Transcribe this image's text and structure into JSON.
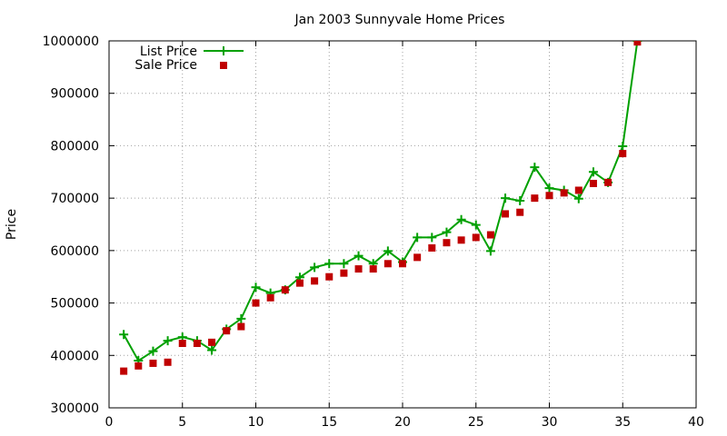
{
  "chart_data": {
    "type": "line",
    "title": "Jan 2003 Sunnyvale Home Prices",
    "xlabel": "",
    "ylabel": "Price",
    "xlim": [
      0,
      40
    ],
    "ylim": [
      300000,
      1000000
    ],
    "xticks": [
      0,
      5,
      10,
      15,
      20,
      25,
      30,
      35,
      40
    ],
    "yticks": [
      300000,
      400000,
      500000,
      600000,
      700000,
      800000,
      900000,
      1000000
    ],
    "grid": true,
    "legend_position": "top-left",
    "series": [
      {
        "name": "List Price",
        "kind": "line-points",
        "color": "#00a000",
        "marker": "plus",
        "x": [
          1,
          2,
          3,
          4,
          5,
          6,
          7,
          8,
          9,
          10,
          11,
          12,
          13,
          14,
          15,
          16,
          17,
          18,
          19,
          20,
          21,
          22,
          23,
          24,
          25,
          26,
          27,
          28,
          29,
          30,
          31,
          32,
          33,
          34,
          35,
          36
        ],
        "y": [
          440000,
          390000,
          408000,
          428000,
          435000,
          428000,
          410000,
          450000,
          470000,
          530000,
          519000,
          525000,
          549000,
          568000,
          575000,
          575000,
          590000,
          575000,
          599000,
          578000,
          625000,
          625000,
          635000,
          659000,
          649000,
          599000,
          700000,
          695000,
          759000,
          719000,
          715000,
          699000,
          750000,
          730000,
          799000,
          1000000
        ]
      },
      {
        "name": "Sale Price",
        "kind": "points",
        "color": "#c00000",
        "marker": "square",
        "x": [
          1,
          2,
          3,
          4,
          5,
          6,
          7,
          8,
          9,
          10,
          11,
          12,
          13,
          14,
          15,
          16,
          17,
          18,
          19,
          20,
          21,
          22,
          23,
          24,
          25,
          26,
          27,
          28,
          29,
          30,
          31,
          32,
          33,
          34,
          35,
          36
        ],
        "y": [
          370000,
          380000,
          385000,
          387000,
          423000,
          423000,
          425000,
          447000,
          455000,
          500000,
          510000,
          525000,
          538000,
          542000,
          550000,
          557000,
          565000,
          565000,
          575000,
          575000,
          587000,
          605000,
          615000,
          620000,
          625000,
          630000,
          670000,
          673000,
          700000,
          705000,
          710000,
          715000,
          728000,
          730000,
          785000,
          998000
        ]
      }
    ]
  }
}
